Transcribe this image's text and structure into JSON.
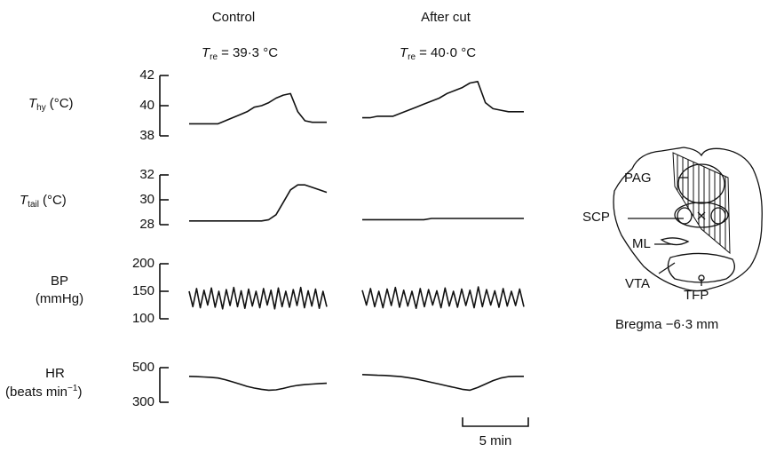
{
  "columns": [
    "Control",
    "After cut"
  ],
  "rectal": [
    {
      "symbol": "T",
      "subscript": "re",
      "value": "= 39·3 °C"
    },
    {
      "symbol": "T",
      "subscript": "re",
      "value": "= 40·0 °C"
    }
  ],
  "panels": [
    {
      "label": {
        "symbol": "T",
        "subscript": "hy",
        "unit": "(°C)"
      },
      "ylim": [
        38,
        42
      ],
      "yticks": [
        38,
        40,
        42
      ],
      "traces": [
        [
          38.8,
          38.8,
          38.8,
          38.8,
          38.8,
          39.0,
          39.2,
          39.4,
          39.6,
          39.9,
          40.0,
          40.2,
          40.5,
          40.7,
          40.8,
          39.6,
          39.0,
          38.9,
          38.9,
          38.9
        ],
        [
          39.2,
          39.2,
          39.3,
          39.3,
          39.3,
          39.5,
          39.7,
          39.9,
          40.1,
          40.3,
          40.5,
          40.8,
          41.0,
          41.2,
          41.5,
          41.6,
          40.2,
          39.8,
          39.7,
          39.6,
          39.6,
          39.6
        ]
      ]
    },
    {
      "label": {
        "symbol": "T",
        "subscript": "tail",
        "unit": "(°C)"
      },
      "ylim": [
        28,
        32
      ],
      "yticks": [
        28,
        30,
        32
      ],
      "traces": [
        [
          28.3,
          28.3,
          28.3,
          28.3,
          28.3,
          28.3,
          28.3,
          28.3,
          28.3,
          28.3,
          28.3,
          28.4,
          28.8,
          29.8,
          30.8,
          31.2,
          31.2,
          31.0,
          30.8,
          30.6
        ],
        [
          28.4,
          28.4,
          28.4,
          28.4,
          28.4,
          28.4,
          28.4,
          28.4,
          28.4,
          28.5,
          28.5,
          28.5,
          28.5,
          28.5,
          28.5,
          28.5,
          28.5,
          28.5,
          28.5,
          28.5,
          28.5,
          28.5
        ]
      ]
    },
    {
      "label": {
        "line1": "BP",
        "line2": "(mmHg)"
      },
      "ylim": [
        100,
        200
      ],
      "yticks": [
        100,
        150,
        200
      ],
      "traces": [
        [
          150,
          122,
          155,
          120,
          152,
          125,
          156,
          121,
          150,
          118,
          153,
          124,
          157,
          122,
          151,
          119,
          154,
          123,
          150,
          120,
          155,
          125,
          152,
          118,
          156,
          122,
          150,
          121,
          153,
          124,
          157,
          120,
          151,
          123,
          154,
          119,
          150,
          122
        ],
        [
          152,
          125,
          155,
          122,
          150,
          120,
          154,
          124,
          157,
          121,
          152,
          123,
          150,
          119,
          155,
          122,
          153,
          125,
          151,
          120,
          156,
          123,
          150,
          121,
          154,
          124,
          152,
          120,
          158,
          122,
          153,
          125,
          151,
          121,
          155,
          123,
          150,
          124,
          154,
          122
        ]
      ]
    },
    {
      "label": {
        "line1": "HR",
        "line2": "(beats min",
        "superscript": "−1",
        "close": ")"
      },
      "ylim": [
        300,
        500
      ],
      "yticks": [
        300,
        500
      ],
      "traces": [
        [
          450,
          448,
          446,
          444,
          440,
          430,
          418,
          405,
          392,
          382,
          375,
          370,
          372,
          380,
          390,
          398,
          402,
          405,
          408,
          410
        ],
        [
          460,
          458,
          456,
          455,
          452,
          448,
          442,
          435,
          425,
          415,
          405,
          395,
          385,
          375,
          370,
          385,
          405,
          425,
          440,
          448,
          450,
          450
        ]
      ]
    }
  ],
  "scale_bar": "5 min",
  "diagram": {
    "labels": [
      "PAG",
      "SCP",
      "ML",
      "VTA",
      "TFP"
    ],
    "caption": "Bregma −6·3 mm"
  }
}
